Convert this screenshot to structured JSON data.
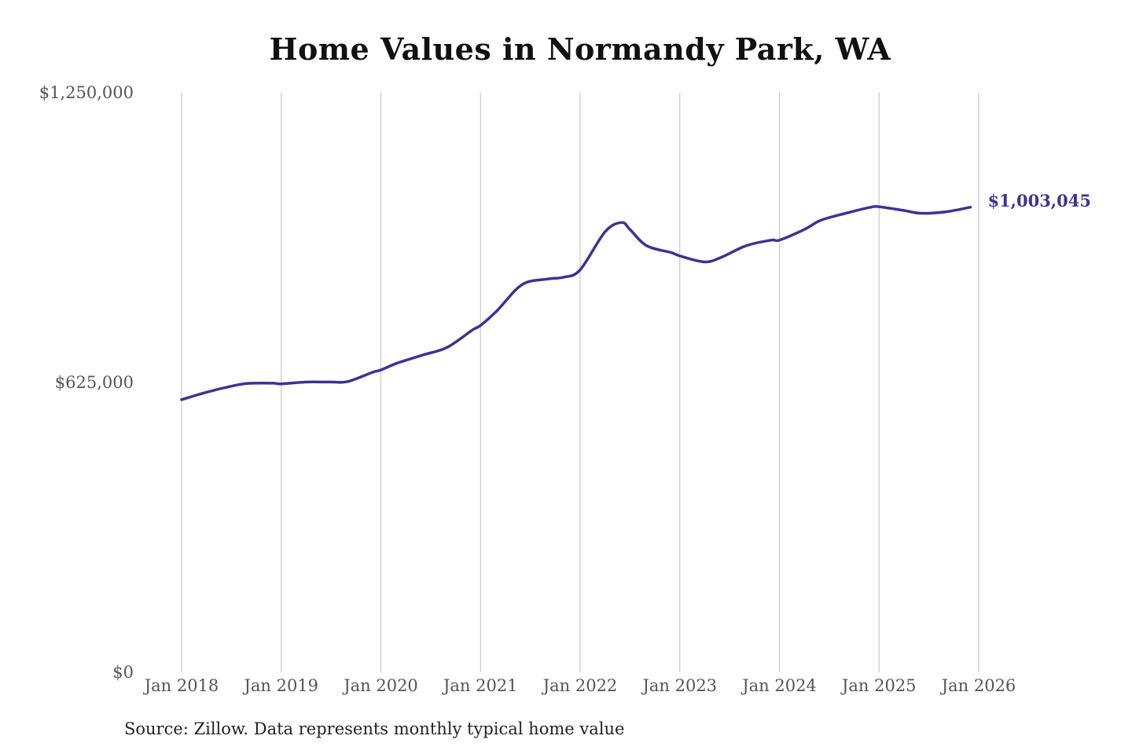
{
  "chart_data": {
    "type": "line",
    "title": "Home Values in Normandy Park, WA",
    "source": "Source: Zillow. Data represents monthly typical home value",
    "ylim": [
      0,
      1250000
    ],
    "xlim": [
      2018,
      2026
    ],
    "y_ticks": [
      {
        "value": 0,
        "label": "$0"
      },
      {
        "value": 625000,
        "label": "$625,000"
      },
      {
        "value": 1250000,
        "label": "$1,250,000"
      }
    ],
    "x_ticks": [
      {
        "value": 2018,
        "label": "Jan 2018"
      },
      {
        "value": 2019,
        "label": "Jan 2019"
      },
      {
        "value": 2020,
        "label": "Jan 2020"
      },
      {
        "value": 2021,
        "label": "Jan 2021"
      },
      {
        "value": 2022,
        "label": "Jan 2022"
      },
      {
        "value": 2023,
        "label": "Jan 2023"
      },
      {
        "value": 2024,
        "label": "Jan 2024"
      },
      {
        "value": 2025,
        "label": "Jan 2025"
      },
      {
        "value": 2026,
        "label": "Jan 2026"
      }
    ],
    "grid": {
      "vertical": true,
      "horizontal": false
    },
    "series": [
      {
        "color": "#3b3494",
        "end_label": "$1,003,045",
        "points": [
          [
            "2018-01",
            588000
          ],
          [
            "2018-04",
            604000
          ],
          [
            "2018-07",
            617000
          ],
          [
            "2018-09",
            623000
          ],
          [
            "2018-12",
            623500
          ],
          [
            "2019-01",
            622000
          ],
          [
            "2019-04",
            626000
          ],
          [
            "2019-07",
            626000
          ],
          [
            "2019-09",
            627000
          ],
          [
            "2019-12",
            647000
          ],
          [
            "2020-01",
            652000
          ],
          [
            "2020-03",
            667000
          ],
          [
            "2020-06",
            684000
          ],
          [
            "2020-09",
            701000
          ],
          [
            "2020-12",
            738000
          ],
          [
            "2021-01",
            748000
          ],
          [
            "2021-03",
            780000
          ],
          [
            "2021-06",
            836000
          ],
          [
            "2021-09",
            848000
          ],
          [
            "2021-11",
            852000
          ],
          [
            "2022-01",
            868000
          ],
          [
            "2022-04",
            950000
          ],
          [
            "2022-06",
            970000
          ],
          [
            "2022-07",
            955000
          ],
          [
            "2022-09",
            920000
          ],
          [
            "2022-12",
            905000
          ],
          [
            "2023-01",
            898000
          ],
          [
            "2023-04",
            885000
          ],
          [
            "2023-06",
            895000
          ],
          [
            "2023-09",
            920000
          ],
          [
            "2023-12",
            932000
          ],
          [
            "2024-01",
            932000
          ],
          [
            "2024-04",
            955000
          ],
          [
            "2024-06",
            975000
          ],
          [
            "2024-09",
            990000
          ],
          [
            "2024-12",
            1003000
          ],
          [
            "2025-01",
            1004000
          ],
          [
            "2025-04",
            996000
          ],
          [
            "2025-06",
            990000
          ],
          [
            "2025-09",
            993000
          ],
          [
            "2025-12",
            1003045
          ]
        ]
      }
    ]
  }
}
